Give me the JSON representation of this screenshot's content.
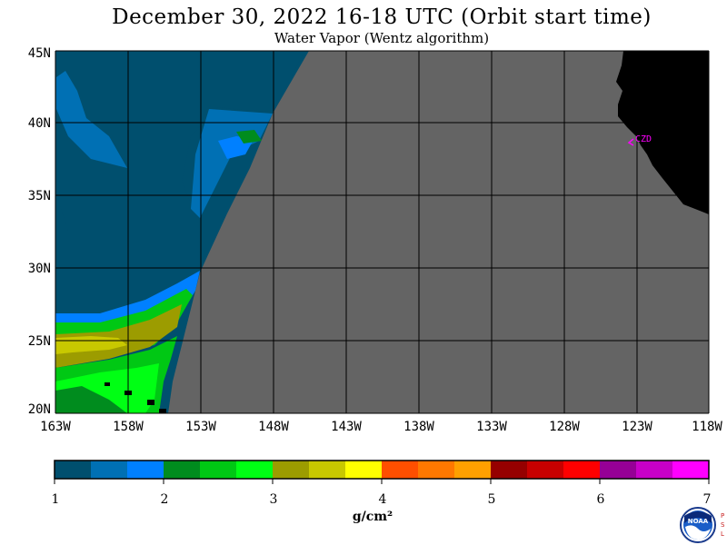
{
  "title": "December 30, 2022  16-18 UTC  (Orbit start time)",
  "subtitle": "Water Vapor (Wentz algorithm)",
  "map": {
    "lat_labels": [
      "45N",
      "40N",
      "35N",
      "30N",
      "25N",
      "20N"
    ],
    "lon_labels": [
      "163W",
      "158W",
      "153W",
      "148W",
      "143W",
      "138W",
      "133W",
      "128W",
      "123W",
      "118W"
    ],
    "station_label": "CZD",
    "colors": {
      "nodata": "#646464",
      "land": "#000000",
      "station": "#ff00ff",
      "grid": "#000000"
    }
  },
  "colorbar": {
    "tick_labels": [
      "1",
      "2",
      "3",
      "4",
      "5",
      "6",
      "7"
    ],
    "unit": "g/cm²",
    "colors": [
      "#004f6e",
      "#0070b4",
      "#0080ff",
      "#008c1e",
      "#00c814",
      "#00ff14",
      "#9c9c00",
      "#c8c800",
      "#ffff00",
      "#ff4f00",
      "#ff7800",
      "#ffa000",
      "#960000",
      "#c80000",
      "#ff0000",
      "#960096",
      "#c800c8",
      "#ff00ff"
    ]
  },
  "logo": {
    "name": "NOAA",
    "side_text": "PSL"
  }
}
